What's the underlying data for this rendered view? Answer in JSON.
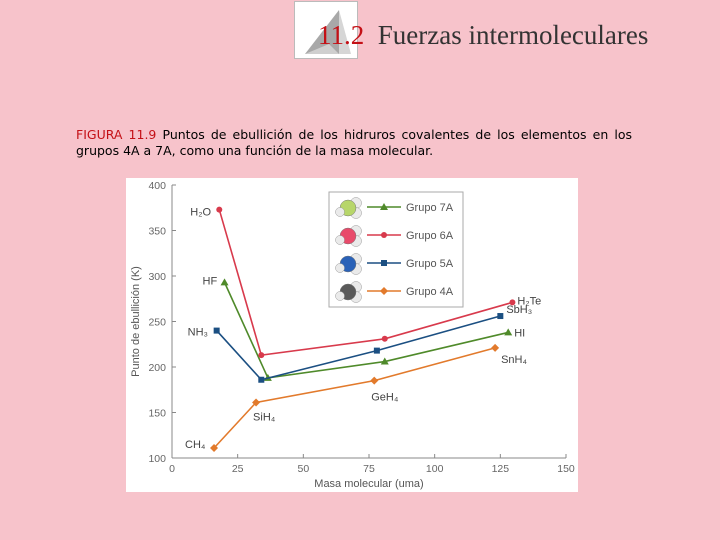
{
  "slide": {
    "section_number": "11.2",
    "section_title": "Fuerzas intermoleculares"
  },
  "caption": {
    "figure_label": "FIGURA 11.9",
    "text": "Puntos de ebullición de los hidruros covalentes de los elementos en los grupos 4A a 7A, como una función de la masa molecular."
  },
  "chart_data": {
    "type": "line",
    "xlabel": "Masa molecular (uma)",
    "ylabel": "Punto de ebullición (K)",
    "xlim": [
      0,
      150
    ],
    "ylim": [
      100,
      400
    ],
    "xticks": [
      0,
      25,
      50,
      75,
      100,
      125,
      150
    ],
    "yticks": [
      100,
      150,
      200,
      250,
      300,
      350,
      400
    ],
    "grid": false,
    "legend_position": "top-center",
    "series": [
      {
        "name": "Grupo 7A",
        "color": "#4f8a2a",
        "marker": "triangle",
        "points": [
          {
            "x": 20,
            "y": 293,
            "label": "HF"
          },
          {
            "x": 36.5,
            "y": 188,
            "label": ""
          },
          {
            "x": 81,
            "y": 206,
            "label": ""
          },
          {
            "x": 128,
            "y": 238,
            "label": "HI"
          }
        ]
      },
      {
        "name": "Grupo 6A",
        "color": "#d83a4c",
        "marker": "circle",
        "points": [
          {
            "x": 18,
            "y": 373,
            "label": "H₂O"
          },
          {
            "x": 34,
            "y": 213,
            "label": ""
          },
          {
            "x": 81,
            "y": 231,
            "label": ""
          },
          {
            "x": 129.6,
            "y": 271,
            "label": "H₂Te"
          }
        ]
      },
      {
        "name": "Grupo 5A",
        "color": "#1b4f82",
        "marker": "square",
        "points": [
          {
            "x": 17,
            "y": 240,
            "label": "NH₃"
          },
          {
            "x": 34,
            "y": 186,
            "label": ""
          },
          {
            "x": 78,
            "y": 218,
            "label": ""
          },
          {
            "x": 125,
            "y": 256,
            "label": "SbH₃"
          }
        ]
      },
      {
        "name": "Grupo 4A",
        "color": "#e27a2c",
        "marker": "diamond",
        "points": [
          {
            "x": 16,
            "y": 111,
            "label": "CH₄"
          },
          {
            "x": 32,
            "y": 161,
            "label": "SiH₄"
          },
          {
            "x": 77,
            "y": 185,
            "label": "GeH₄"
          },
          {
            "x": 123,
            "y": 221,
            "label": "SnH₄"
          }
        ]
      }
    ]
  }
}
